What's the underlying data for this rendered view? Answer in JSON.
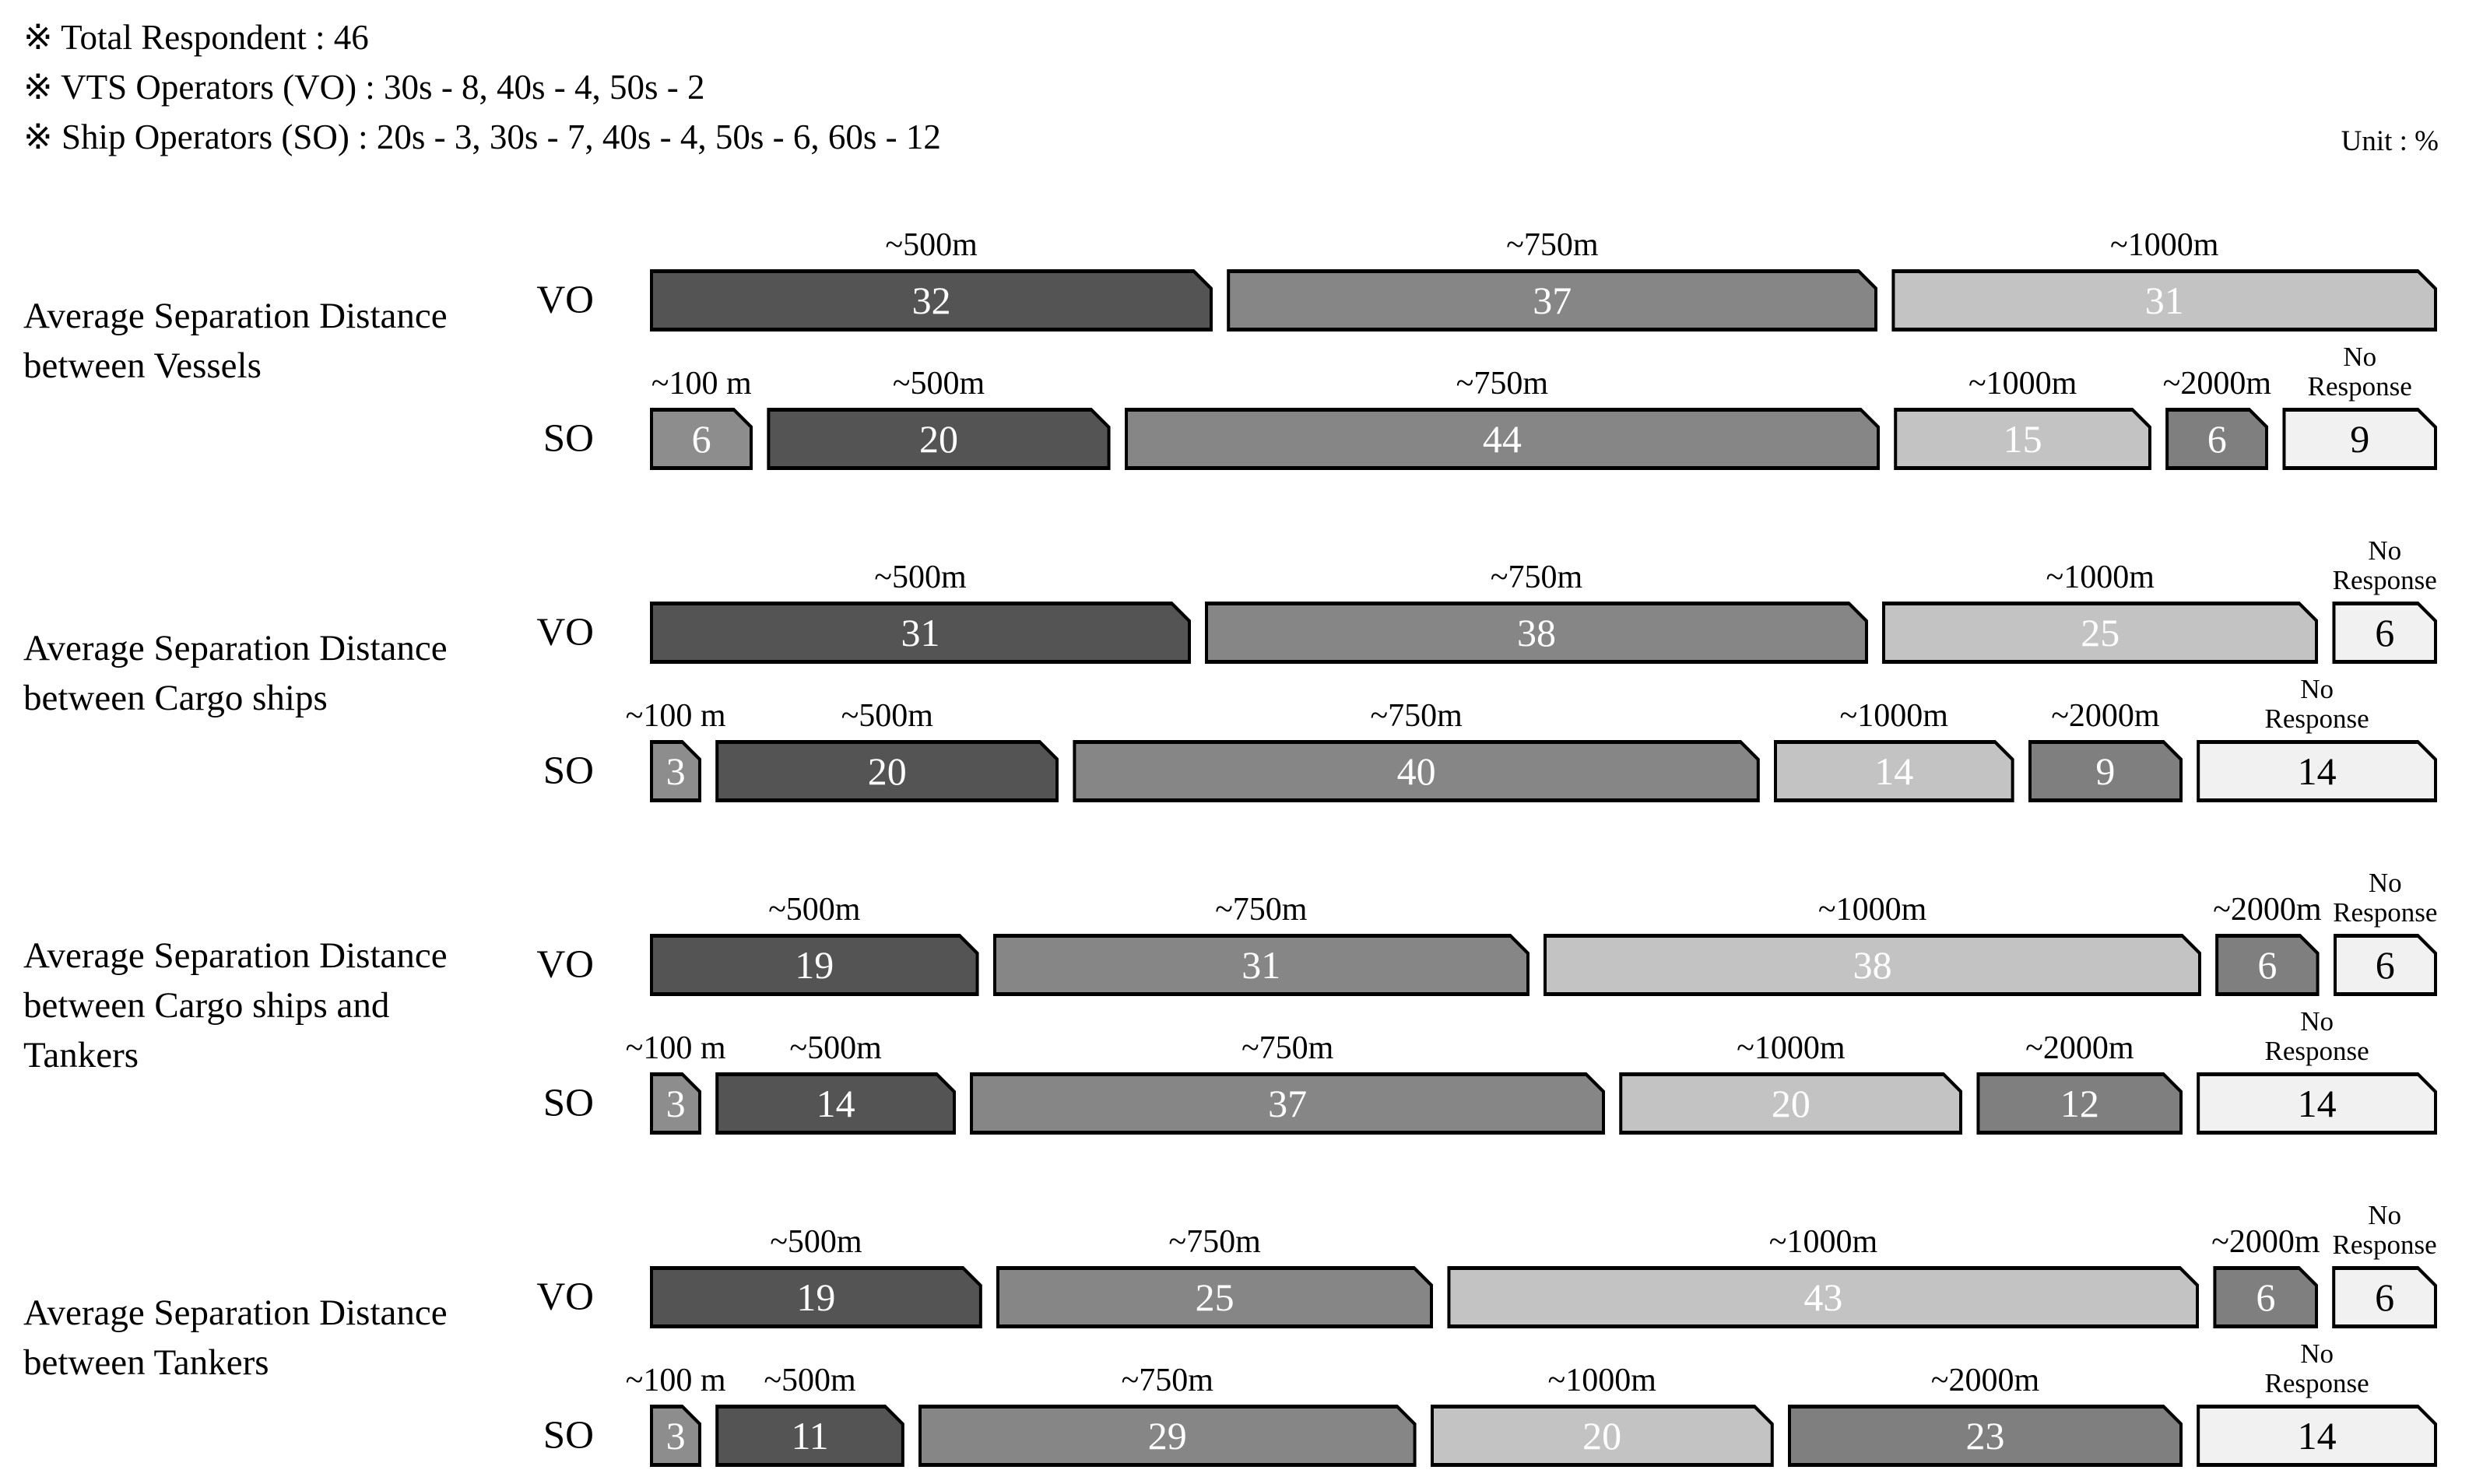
{
  "header": {
    "notes": [
      "※ Total Respondent : 46",
      "※ VTS Operators (VO) : 30s - 8, 40s - 4, 50s - 2",
      "※ Ship Operators (SO) : 20s - 3, 30s - 7, 40s - 4, 50s - 6, 60s - 12"
    ],
    "unit_label": "Unit : %"
  },
  "categories": {
    "c100": {
      "label": "~100 m",
      "fill": "#8d8d8d",
      "text": "#ffffff"
    },
    "c500": {
      "label": "~500m",
      "fill": "#545454",
      "text": "#ffffff"
    },
    "c750": {
      "label": "~750m",
      "fill": "#868686",
      "text": "#ffffff"
    },
    "c1000": {
      "label": "~1000m",
      "fill": "#c3c3c3",
      "text": "#ffffff"
    },
    "c2000": {
      "label": "~2000m",
      "fill": "#7f7f7f",
      "text": "#ffffff"
    },
    "noresp": {
      "label": "No\nResponse",
      "fill": "#f1f1f1",
      "text": "#000000"
    }
  },
  "chart_data": {
    "type": "bar",
    "variant": "horizontal-stacked-percent",
    "unit": "%",
    "xlim": [
      0,
      100
    ],
    "grid": false,
    "legend": "category-labels-above-segments",
    "groups": [
      {
        "title": "Average Separation Distance\nbetween Vessels",
        "rows": [
          {
            "label": "VO",
            "segments": [
              {
                "cat": "c500",
                "value": 32
              },
              {
                "cat": "c750",
                "value": 37
              },
              {
                "cat": "c1000",
                "value": 31
              }
            ]
          },
          {
            "label": "SO",
            "segments": [
              {
                "cat": "c100",
                "value": 6
              },
              {
                "cat": "c500",
                "value": 20
              },
              {
                "cat": "c750",
                "value": 44
              },
              {
                "cat": "c1000",
                "value": 15
              },
              {
                "cat": "c2000",
                "value": 6
              },
              {
                "cat": "noresp",
                "value": 9
              }
            ]
          }
        ]
      },
      {
        "title": "Average Separation Distance\nbetween Cargo ships",
        "rows": [
          {
            "label": "VO",
            "segments": [
              {
                "cat": "c500",
                "value": 31
              },
              {
                "cat": "c750",
                "value": 38
              },
              {
                "cat": "c1000",
                "value": 25
              },
              {
                "cat": "noresp",
                "value": 6
              }
            ]
          },
          {
            "label": "SO",
            "segments": [
              {
                "cat": "c100",
                "value": 3
              },
              {
                "cat": "c500",
                "value": 20
              },
              {
                "cat": "c750",
                "value": 40
              },
              {
                "cat": "c1000",
                "value": 14
              },
              {
                "cat": "c2000",
                "value": 9
              },
              {
                "cat": "noresp",
                "value": 14
              }
            ]
          }
        ]
      },
      {
        "title": "Average Separation Distance\nbetween Cargo ships and\nTankers",
        "rows": [
          {
            "label": "VO",
            "segments": [
              {
                "cat": "c500",
                "value": 19
              },
              {
                "cat": "c750",
                "value": 31
              },
              {
                "cat": "c1000",
                "value": 38
              },
              {
                "cat": "c2000",
                "value": 6
              },
              {
                "cat": "noresp",
                "value": 6
              }
            ]
          },
          {
            "label": "SO",
            "segments": [
              {
                "cat": "c100",
                "value": 3
              },
              {
                "cat": "c500",
                "value": 14
              },
              {
                "cat": "c750",
                "value": 37
              },
              {
                "cat": "c1000",
                "value": 20
              },
              {
                "cat": "c2000",
                "value": 12
              },
              {
                "cat": "noresp",
                "value": 14
              }
            ]
          }
        ]
      },
      {
        "title": "Average Separation Distance\nbetween Tankers",
        "rows": [
          {
            "label": "VO",
            "segments": [
              {
                "cat": "c500",
                "value": 19
              },
              {
                "cat": "c750",
                "value": 25
              },
              {
                "cat": "c1000",
                "value": 43
              },
              {
                "cat": "c2000",
                "value": 6
              },
              {
                "cat": "noresp",
                "value": 6
              }
            ]
          },
          {
            "label": "SO",
            "segments": [
              {
                "cat": "c100",
                "value": 3
              },
              {
                "cat": "c500",
                "value": 11
              },
              {
                "cat": "c750",
                "value": 29
              },
              {
                "cat": "c1000",
                "value": 20
              },
              {
                "cat": "c2000",
                "value": 23
              },
              {
                "cat": "noresp",
                "value": 14
              }
            ]
          }
        ]
      }
    ]
  }
}
